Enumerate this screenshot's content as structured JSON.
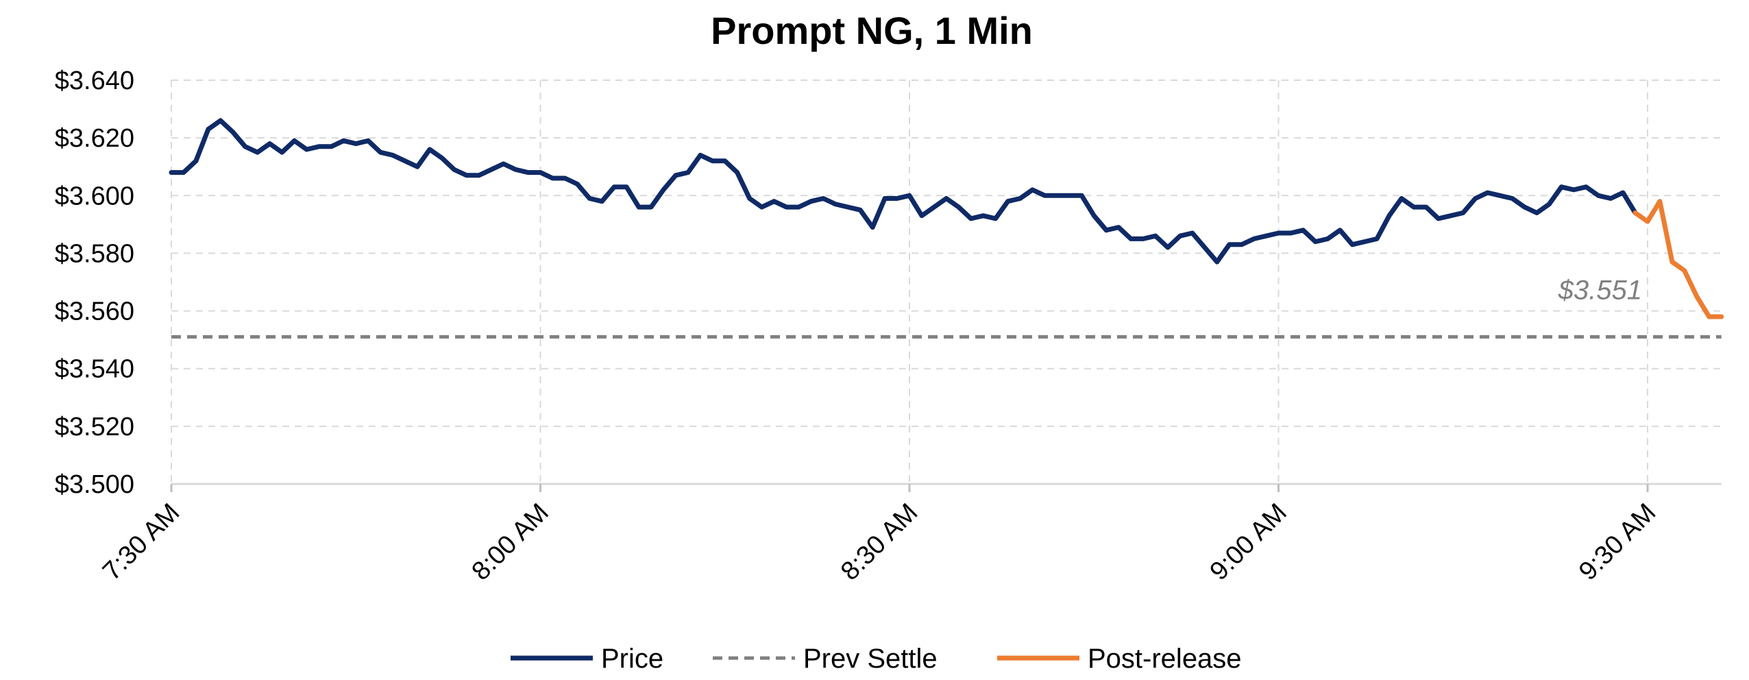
{
  "chart_data": {
    "type": "line",
    "title": "Prompt NG, 1 Min",
    "xlabel": "",
    "ylabel": "",
    "ylim": [
      3.5,
      3.64
    ],
    "y_ticks": [
      "$3.500",
      "$3.520",
      "$3.540",
      "$3.560",
      "$3.580",
      "$3.600",
      "$3.620",
      "$3.640"
    ],
    "x_ticks": [
      "7:30 AM",
      "8:00 AM",
      "8:30 AM",
      "9:00 AM",
      "9:30 AM"
    ],
    "x_unit": "minutes after 7:30 AM",
    "xlim": [
      0,
      126
    ],
    "grid": true,
    "legend_position": "bottom",
    "prev_settle_label": "$3.551",
    "series": [
      {
        "name": "Price",
        "color": "#0f2a66",
        "x": [
          0,
          1,
          2,
          3,
          4,
          5,
          6,
          7,
          8,
          9,
          10,
          11,
          12,
          13,
          14,
          15,
          16,
          17,
          18,
          19,
          20,
          21,
          22,
          23,
          24,
          25,
          26,
          27,
          28,
          29,
          30,
          31,
          32,
          33,
          34,
          35,
          36,
          37,
          38,
          39,
          40,
          41,
          42,
          43,
          44,
          45,
          46,
          47,
          48,
          49,
          50,
          51,
          52,
          53,
          54,
          55,
          56,
          57,
          58,
          59,
          60,
          61,
          62,
          63,
          64,
          65,
          66,
          67,
          68,
          69,
          70,
          71,
          72,
          73,
          74,
          75,
          76,
          77,
          78,
          79,
          80,
          81,
          82,
          83,
          84,
          85,
          86,
          87,
          88,
          89,
          90,
          91,
          92,
          93,
          94,
          95,
          96,
          97,
          98,
          99,
          100,
          101,
          102,
          103,
          104,
          105,
          106,
          107,
          108,
          109,
          110,
          111,
          112,
          113,
          114,
          115,
          116,
          117,
          118,
          119,
          120,
          121,
          122,
          123,
          124,
          125,
          126
        ],
        "values": [
          3.608,
          3.608,
          3.612,
          3.623,
          3.626,
          3.622,
          3.617,
          3.615,
          3.618,
          3.615,
          3.619,
          3.616,
          3.617,
          3.617,
          3.619,
          3.618,
          3.619,
          3.615,
          3.614,
          3.612,
          3.61,
          3.616,
          3.613,
          3.609,
          3.607,
          3.607,
          3.609,
          3.611,
          3.609,
          3.608,
          3.608,
          3.606,
          3.606,
          3.604,
          3.599,
          3.598,
          3.603,
          3.603,
          3.596,
          3.596,
          3.602,
          3.607,
          3.608,
          3.614,
          3.612,
          3.612,
          3.608,
          3.599,
          3.596,
          3.598,
          3.596,
          3.596,
          3.598,
          3.599,
          3.597,
          3.596,
          3.595,
          3.589,
          3.599,
          3.599,
          3.6,
          3.593,
          3.596,
          3.599,
          3.596,
          3.592,
          3.593,
          3.592,
          3.598,
          3.599,
          3.602,
          3.6,
          3.6,
          3.6,
          3.6,
          3.593,
          3.588,
          3.589,
          3.585,
          3.585,
          3.586,
          3.582,
          3.586,
          3.587,
          3.582,
          3.577,
          3.583,
          3.583,
          3.585,
          3.586,
          3.587,
          3.587,
          3.588,
          3.584,
          3.585,
          3.588,
          3.583,
          3.584,
          3.585,
          3.593,
          3.599,
          3.596,
          3.596,
          3.592,
          3.593,
          3.594,
          3.599,
          3.601,
          3.6,
          3.599,
          3.596,
          3.594,
          3.597,
          3.603,
          3.602,
          3.603,
          3.6,
          3.599,
          3.601,
          3.594,
          null,
          null,
          null,
          null,
          null,
          null,
          null
        ]
      },
      {
        "name": "Prev Settle",
        "color": "#808080",
        "dashed": true,
        "x": [
          0,
          126
        ],
        "values": [
          3.551,
          3.551
        ]
      },
      {
        "name": "Post-release",
        "color": "#ed7d31",
        "x": [
          119,
          120,
          121,
          122,
          123,
          124,
          125,
          126
        ],
        "values": [
          3.594,
          3.591,
          3.598,
          3.577,
          3.574,
          3.565,
          3.558,
          3.558
        ]
      }
    ]
  }
}
